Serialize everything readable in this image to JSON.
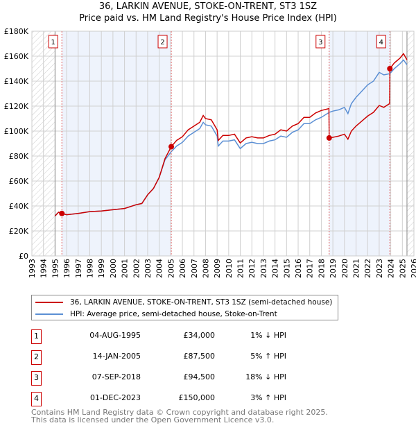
{
  "title": "36, LARKIN AVENUE, STOKE-ON-TRENT, ST3 1SZ",
  "subtitle": "Price paid vs. HM Land Registry's House Price Index (HPI)",
  "chart_data": {
    "type": "line",
    "title": "36, LARKIN AVENUE, STOKE-ON-TRENT, ST3 1SZ — Price paid vs. HM Land Registry's House Price Index (HPI)",
    "xlim": [
      1993,
      2026
    ],
    "ylim": [
      0,
      180000
    ],
    "grid": true,
    "x_ticks": [
      "1993",
      "1994",
      "1995",
      "1996",
      "1997",
      "1998",
      "1999",
      "2000",
      "2001",
      "2002",
      "2003",
      "2004",
      "2005",
      "2006",
      "2007",
      "2008",
      "2009",
      "2010",
      "2011",
      "2012",
      "2013",
      "2014",
      "2015",
      "2016",
      "2017",
      "2018",
      "2019",
      "2020",
      "2021",
      "2022",
      "2023",
      "2024",
      "2025",
      "2026"
    ],
    "y_ticks": [
      {
        "v": 0,
        "label": "£0"
      },
      {
        "v": 20000,
        "label": "£20K"
      },
      {
        "v": 40000,
        "label": "£40K"
      },
      {
        "v": 60000,
        "label": "£60K"
      },
      {
        "v": 80000,
        "label": "£80K"
      },
      {
        "v": 100000,
        "label": "£100K"
      },
      {
        "v": 120000,
        "label": "£120K"
      },
      {
        "v": 140000,
        "label": "£140K"
      },
      {
        "v": 160000,
        "label": "£160K"
      },
      {
        "v": 180000,
        "label": "£180K"
      }
    ],
    "hatched_before": 1995.0,
    "hatched_after": 2025.4,
    "series": [
      {
        "name": "36, LARKIN AVENUE, STOKE-ON-TRENT, ST3 1SZ (semi-detached house)",
        "color": "#cc0000",
        "x": [
          1995.0,
          1995.3,
          1995.59,
          1996,
          1997,
          1998,
          1999,
          2000,
          2001,
          2002,
          2002.5,
          2003,
          2003.5,
          2004,
          2004.5,
          2005.04,
          2005.5,
          2006,
          2006.5,
          2007,
          2007.5,
          2007.8,
          2008,
          2008.5,
          2009,
          2009.1,
          2009.5,
          2010,
          2010.5,
          2011,
          2011.5,
          2012,
          2012.5,
          2013,
          2013.5,
          2014,
          2014.5,
          2015,
          2015.5,
          2016,
          2016.5,
          2017,
          2017.5,
          2018,
          2018.66,
          2018.68,
          2019,
          2019.5,
          2020,
          2020.3,
          2020.6,
          2021,
          2021.5,
          2022,
          2022.5,
          2023,
          2023.4,
          2023.9,
          2023.92,
          2024.3,
          2024.8,
          2025.1,
          2025.4
        ],
        "y": [
          32000,
          35000,
          34000,
          33000,
          34000,
          35500,
          36000,
          37000,
          38000,
          41000,
          42000,
          49000,
          54000,
          63000,
          78000,
          87500,
          92500,
          95500,
          101000,
          104000,
          107000,
          112500,
          110000,
          109000,
          101000,
          92500,
          96500,
          96500,
          97500,
          90500,
          94500,
          95500,
          94500,
          94500,
          96500,
          97500,
          101000,
          100000,
          104000,
          106000,
          111000,
          111000,
          114500,
          116500,
          118000,
          94500,
          95000,
          96000,
          97500,
          93500,
          100000,
          104000,
          108000,
          112000,
          115000,
          120500,
          119000,
          122000,
          150000,
          154500,
          158500,
          162000,
          157000
        ]
      },
      {
        "name": "HPI: Average price, semi-detached house, Stoke-on-Trent",
        "color": "#5b8fd4",
        "x": [
          1995.0,
          1995.3,
          1995.59,
          1996,
          1997,
          1998,
          1999,
          2000,
          2001,
          2002,
          2002.5,
          2003,
          2003.5,
          2004,
          2004.5,
          2005.04,
          2005.5,
          2006,
          2006.5,
          2007,
          2007.5,
          2007.8,
          2008,
          2008.5,
          2009,
          2009.1,
          2009.5,
          2010,
          2010.5,
          2011,
          2011.5,
          2012,
          2012.5,
          2013,
          2013.5,
          2014,
          2014.5,
          2015,
          2015.5,
          2016,
          2016.5,
          2017,
          2017.5,
          2018,
          2018.68,
          2019,
          2019.5,
          2020,
          2020.3,
          2020.6,
          2021,
          2021.5,
          2022,
          2022.5,
          2023,
          2023.4,
          2023.92,
          2024.3,
          2024.8,
          2025.1,
          2025.4
        ],
        "y": [
          32000,
          35000,
          34300,
          33000,
          34000,
          35500,
          36000,
          37000,
          38000,
          41000,
          42000,
          49000,
          54000,
          63000,
          77000,
          83500,
          88000,
          91000,
          96000,
          99000,
          102000,
          107000,
          105000,
          104000,
          96000,
          88000,
          92000,
          92000,
          93000,
          86000,
          90000,
          91000,
          90000,
          90000,
          92000,
          93000,
          96000,
          95000,
          99000,
          101000,
          106000,
          106000,
          109000,
          111000,
          115000,
          116000,
          117000,
          119000,
          114000,
          122000,
          127000,
          132000,
          137000,
          140000,
          147000,
          145000,
          146000,
          150000,
          154000,
          157000,
          153000
        ]
      }
    ],
    "sales": [
      {
        "n": "1",
        "x": 1995.59,
        "y": 34000
      },
      {
        "n": "2",
        "x": 2005.04,
        "y": 87500
      },
      {
        "n": "3",
        "x": 2018.68,
        "y": 94500
      },
      {
        "n": "4",
        "x": 2023.92,
        "y": 150000
      }
    ]
  },
  "legend": {
    "property": "36, LARKIN AVENUE, STOKE-ON-TRENT, ST3 1SZ (semi-detached house)",
    "hpi": "HPI: Average price, semi-detached house, Stoke-on-Trent"
  },
  "transactions": [
    {
      "n": "1",
      "date": "04-AUG-1995",
      "price": "£34,000",
      "hpi": "1% ↓ HPI"
    },
    {
      "n": "2",
      "date": "14-JAN-2005",
      "price": "£87,500",
      "hpi": "5% ↑ HPI"
    },
    {
      "n": "3",
      "date": "07-SEP-2018",
      "price": "£94,500",
      "hpi": "18% ↓ HPI"
    },
    {
      "n": "4",
      "date": "01-DEC-2023",
      "price": "£150,000",
      "hpi": "3% ↑ HPI"
    }
  ],
  "footer": {
    "line1": "Contains HM Land Registry data © Crown copyright and database right 2025.",
    "line2": "This data is licensed under the Open Government Licence v3.0."
  }
}
